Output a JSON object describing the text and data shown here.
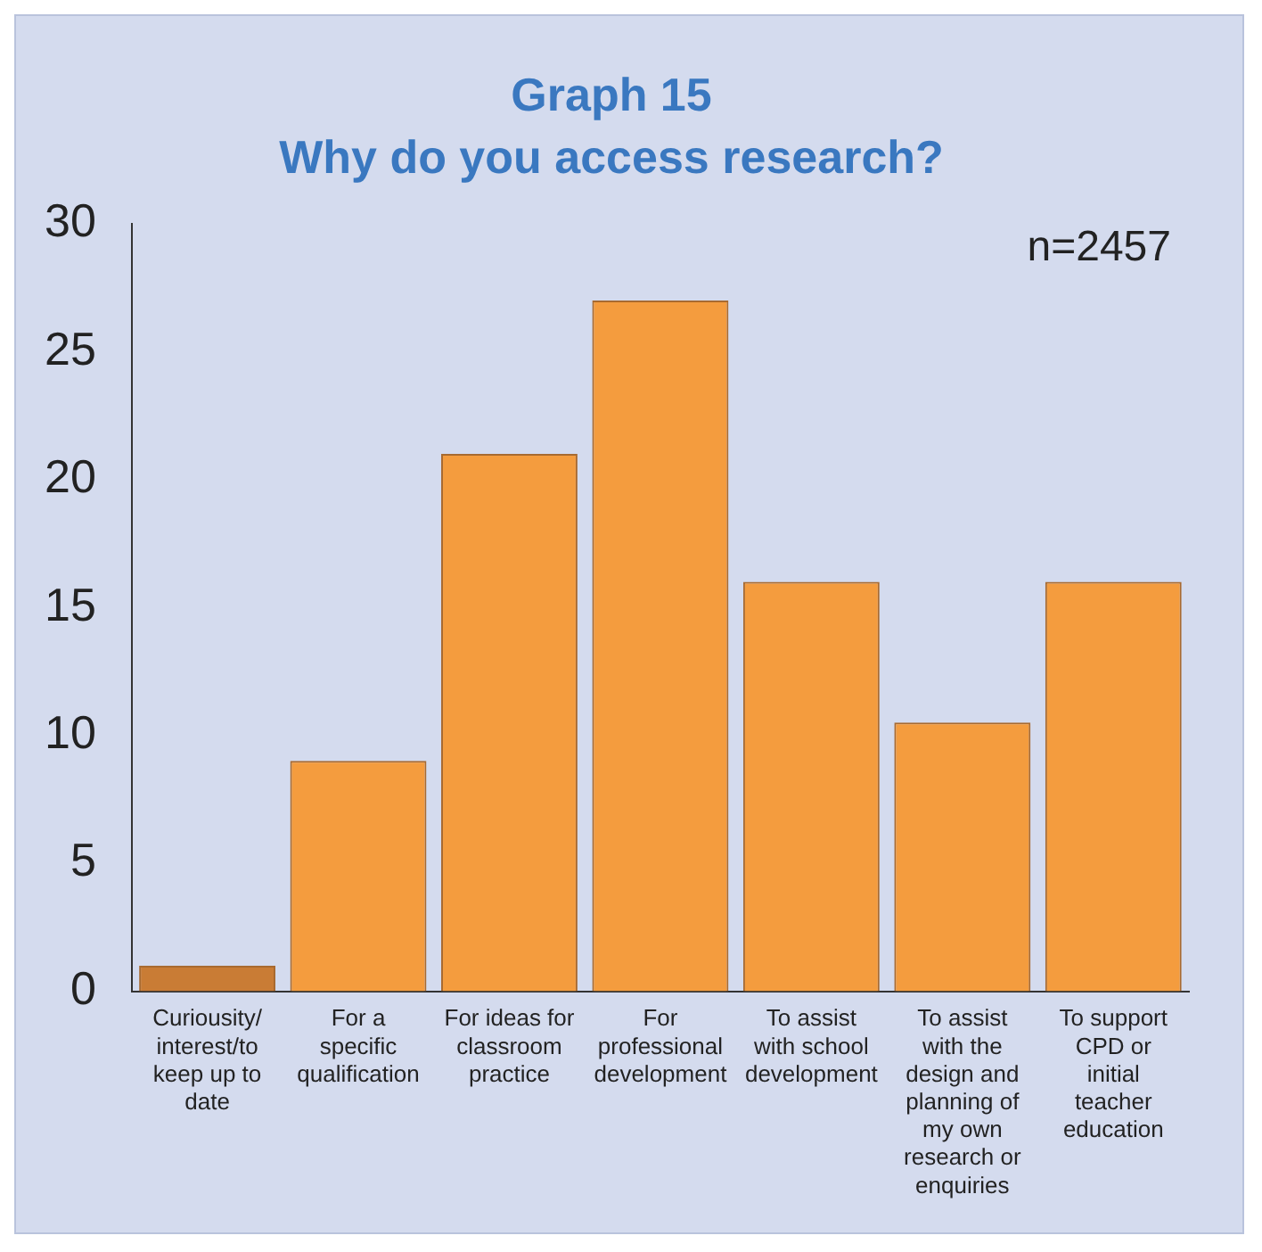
{
  "chart_data": {
    "type": "bar",
    "title": "Graph 15",
    "subtitle": "Why do you access research?",
    "categories": [
      "Curiousity/ interest/to keep up to date",
      "For a specific qualification",
      "For ideas for classroom practice",
      "For professional development",
      "To assist with school development",
      "To assist with the design and planning of my own research or enquiries",
      "To support CPD or initial teacher education"
    ],
    "values": [
      1,
      9,
      21,
      27,
      16,
      10.5,
      16
    ],
    "colors": [
      "#c97c35",
      "#f49c3e",
      "#f49c3e",
      "#f49c3e",
      "#f49c3e",
      "#f49c3e",
      "#f49c3e"
    ],
    "ylim": [
      0,
      30
    ],
    "yticks": [
      0,
      5,
      10,
      15,
      20,
      25,
      30
    ],
    "grid": false,
    "legend": false,
    "annotations": [
      "n=2457"
    ]
  }
}
